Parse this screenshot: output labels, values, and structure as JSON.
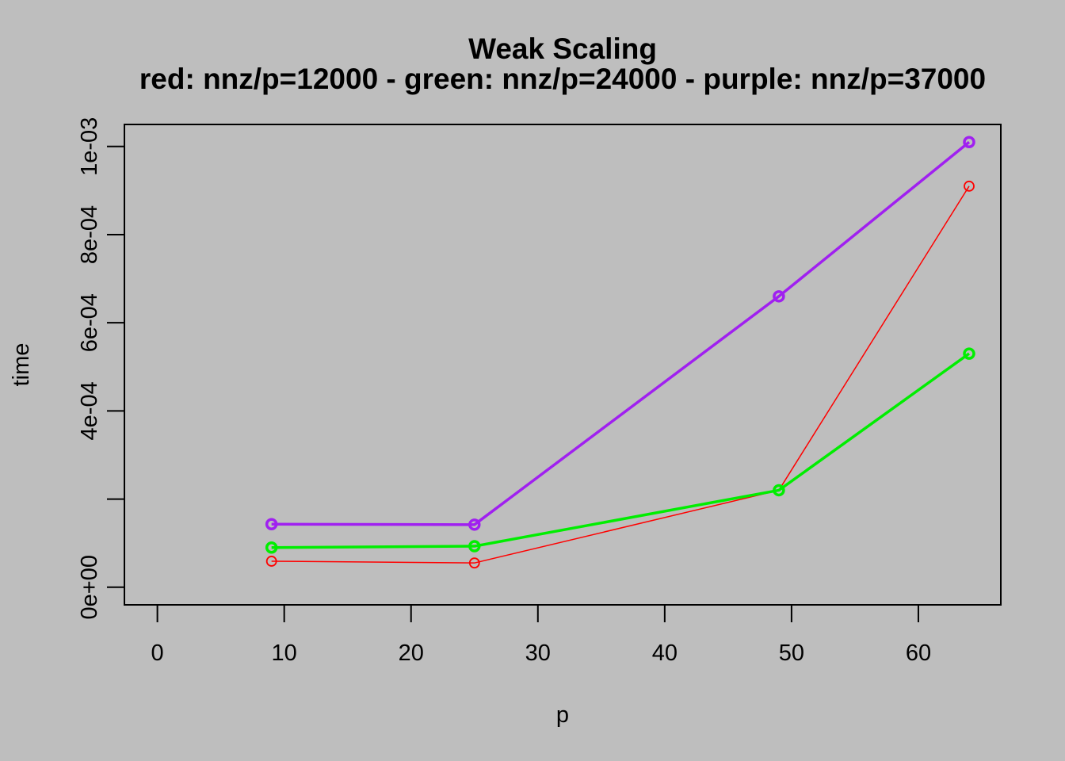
{
  "chart_data": {
    "type": "line",
    "title": "Weak Scaling",
    "subtitle": "red: nnz/p=12000 - green: nnz/p=24000 - purple: nnz/p=37000",
    "xlabel": "p",
    "ylabel": "time",
    "x_ticks": [
      0,
      10,
      20,
      30,
      40,
      50,
      60
    ],
    "x_tick_labels": [
      "0",
      "10",
      "20",
      "30",
      "40",
      "50",
      "60"
    ],
    "y_ticks": [
      0,
      0.0002,
      0.0004,
      0.0006,
      0.0008,
      0.001
    ],
    "y_tick_labels": [
      "0e+00",
      "",
      "4e-04",
      "6e-04",
      "8e-04",
      "1e-03"
    ],
    "xlim": [
      -2.6,
      66.5
    ],
    "ylim": [
      -4e-05,
      0.00105
    ],
    "grid": false,
    "legend": "none",
    "series": [
      {
        "color": "#ff0000",
        "x": [
          9,
          25,
          49,
          64
        ],
        "y": [
          5.9e-05,
          5.5e-05,
          0.00022,
          0.00091
        ],
        "line_width": 1.5
      },
      {
        "color": "#00ee00",
        "x": [
          9,
          25,
          49,
          64
        ],
        "y": [
          9e-05,
          9.3e-05,
          0.00022,
          0.00053
        ],
        "line_width": 3.5
      },
      {
        "color": "#a020f0",
        "x": [
          9,
          25,
          49,
          64
        ],
        "y": [
          0.000143,
          0.000142,
          0.00066,
          0.00101
        ],
        "line_width": 3.5
      }
    ]
  }
}
